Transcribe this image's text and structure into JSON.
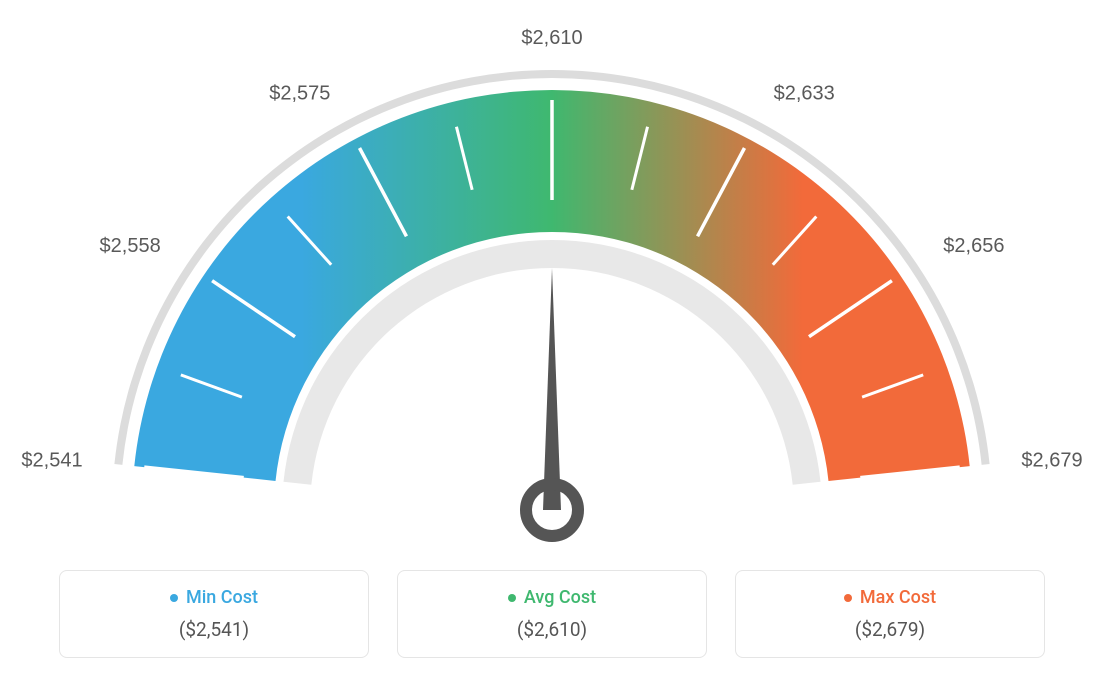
{
  "gauge": {
    "type": "gauge",
    "min_value": 2541,
    "max_value": 2679,
    "current_value": 2610,
    "tick_labels": [
      "$2,541",
      "$2,558",
      "$2,575",
      "$2,610",
      "$2,633",
      "$2,656",
      "$2,679"
    ],
    "tick_fontsize": 20,
    "tick_color": "#595959",
    "outer_ring_color": "#dcdcdc",
    "inner_ring_color": "#e8e8e8",
    "arc_colors": {
      "start": "#3aa8e0",
      "mid": "#3fb86f",
      "end": "#f26a3a"
    },
    "needle_color": "#555555",
    "tick_mark_color": "#ffffff",
    "background_color": "#ffffff"
  },
  "legend": {
    "items": [
      {
        "label": "Min Cost",
        "value": "($2,541)",
        "color": "#3aa8e0"
      },
      {
        "label": "Avg Cost",
        "value": "($2,610)",
        "color": "#3fb86f"
      },
      {
        "label": "Max Cost",
        "value": "($2,679)",
        "color": "#f26a3a"
      }
    ],
    "border_color": "#e5e5e5",
    "label_fontsize": 18,
    "value_fontsize": 19,
    "value_color": "#555555"
  }
}
